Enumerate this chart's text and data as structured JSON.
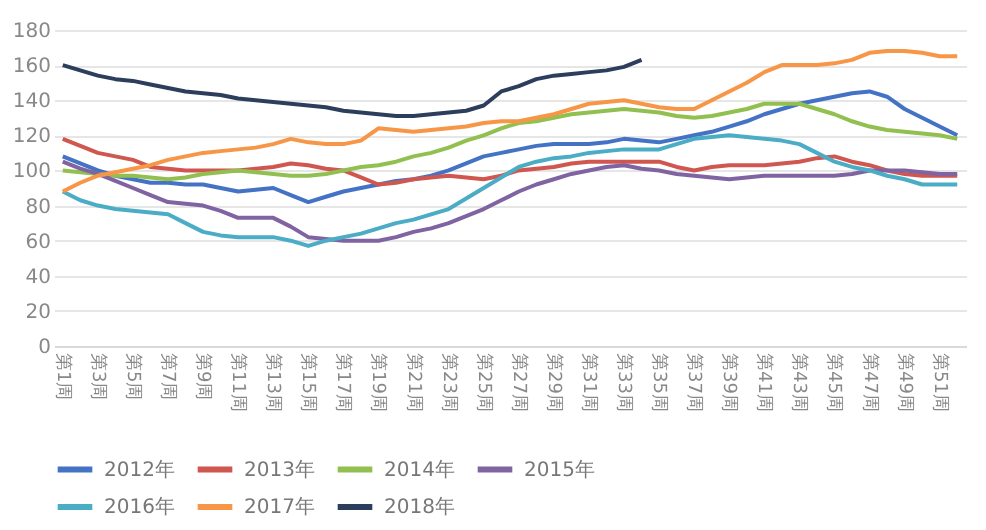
{
  "chart_data": {
    "type": "line",
    "categories": [
      "第1周",
      null,
      "第3周",
      null,
      "第5周",
      null,
      "第7周",
      null,
      "第9周",
      null,
      "第11周",
      null,
      "第13周",
      null,
      "第15周",
      null,
      "第17周",
      null,
      "第19周",
      null,
      "第21周",
      null,
      "第23周",
      null,
      "第25周",
      null,
      "第27周",
      null,
      "第29周",
      null,
      "第31周",
      null,
      "第33周",
      null,
      "第35周",
      null,
      "第37周",
      null,
      "第39周",
      null,
      "第41周",
      null,
      "第43周",
      null,
      "第45周",
      null,
      "第47周",
      null,
      "第49周",
      null,
      "第51周",
      null
    ],
    "ylim": [
      0,
      180
    ],
    "yticks": [
      0,
      20,
      40,
      60,
      80,
      100,
      120,
      140,
      160,
      180
    ],
    "grid": "y",
    "legend": "bottom",
    "series": [
      {
        "name": "2012年",
        "color": "#4472c4",
        "values": [
          108,
          104,
          100,
          97,
          95,
          93,
          93,
          92,
          92,
          90,
          88,
          89,
          90,
          86,
          82,
          85,
          88,
          90,
          92,
          94,
          95,
          97,
          100,
          104,
          108,
          110,
          112,
          114,
          115,
          115,
          115,
          116,
          118,
          117,
          116,
          118,
          120,
          122,
          125,
          128,
          132,
          135,
          138,
          140,
          142,
          144,
          145,
          142,
          135,
          130,
          125,
          120
        ]
      },
      {
        "name": "2013年",
        "color": "#d0574f",
        "values": [
          118,
          114,
          110,
          108,
          106,
          102,
          101,
          100,
          100,
          100,
          100,
          101,
          102,
          104,
          103,
          101,
          100,
          96,
          92,
          93,
          95,
          96,
          97,
          96,
          95,
          97,
          100,
          101,
          102,
          104,
          105,
          105,
          105,
          105,
          105,
          102,
          100,
          102,
          103,
          103,
          103,
          104,
          105,
          107,
          108,
          105,
          103,
          100,
          98,
          97,
          97,
          97
        ]
      },
      {
        "name": "2014年",
        "color": "#92c050",
        "values": [
          100,
          99,
          98,
          97,
          97,
          96,
          95,
          96,
          98,
          99,
          100,
          99,
          98,
          97,
          97,
          98,
          100,
          102,
          103,
          105,
          108,
          110,
          113,
          117,
          120,
          124,
          127,
          128,
          130,
          132,
          133,
          134,
          135,
          134,
          133,
          131,
          130,
          131,
          133,
          135,
          138,
          138,
          138,
          135,
          132,
          128,
          125,
          123,
          122,
          121,
          120,
          118
        ]
      },
      {
        "name": "2015年",
        "color": "#8064a2",
        "values": [
          105,
          101,
          98,
          94,
          90,
          86,
          82,
          81,
          80,
          77,
          73,
          73,
          73,
          68,
          62,
          61,
          60,
          60,
          60,
          62,
          65,
          67,
          70,
          74,
          78,
          83,
          88,
          92,
          95,
          98,
          100,
          102,
          103,
          101,
          100,
          98,
          97,
          96,
          95,
          96,
          97,
          97,
          97,
          97,
          97,
          98,
          100,
          100,
          100,
          99,
          98,
          98
        ]
      },
      {
        "name": "2016年",
        "color": "#4bacc6",
        "values": [
          88,
          83,
          80,
          78,
          77,
          76,
          75,
          70,
          65,
          63,
          62,
          62,
          62,
          60,
          57,
          60,
          62,
          64,
          67,
          70,
          72,
          75,
          78,
          84,
          90,
          96,
          102,
          105,
          107,
          108,
          110,
          111,
          112,
          112,
          112,
          115,
          118,
          119,
          120,
          119,
          118,
          117,
          115,
          110,
          105,
          102,
          100,
          97,
          95,
          92,
          92,
          92
        ]
      },
      {
        "name": "2017年",
        "color": "#f79646",
        "values": [
          88,
          93,
          97,
          99,
          101,
          103,
          106,
          108,
          110,
          111,
          112,
          113,
          115,
          118,
          116,
          115,
          115,
          117,
          124,
          123,
          122,
          123,
          124,
          125,
          127,
          128,
          128,
          130,
          132,
          135,
          138,
          139,
          140,
          138,
          136,
          135,
          135,
          140,
          145,
          150,
          156,
          160,
          160,
          160,
          161,
          163,
          167,
          168,
          168,
          167,
          165,
          165
        ]
      },
      {
        "name": "2018年",
        "color": "#2c3e5c",
        "values": [
          160,
          157,
          154,
          152,
          151,
          149,
          147,
          145,
          144,
          143,
          141,
          140,
          139,
          138,
          137,
          136,
          134,
          133,
          132,
          131,
          131,
          132,
          133,
          134,
          137,
          145,
          148,
          152,
          154,
          155,
          156,
          157,
          159,
          163,
          null,
          null,
          null,
          null,
          null,
          null,
          null,
          null,
          null,
          null,
          null,
          null,
          null,
          null,
          null,
          null,
          null,
          null
        ]
      }
    ]
  }
}
